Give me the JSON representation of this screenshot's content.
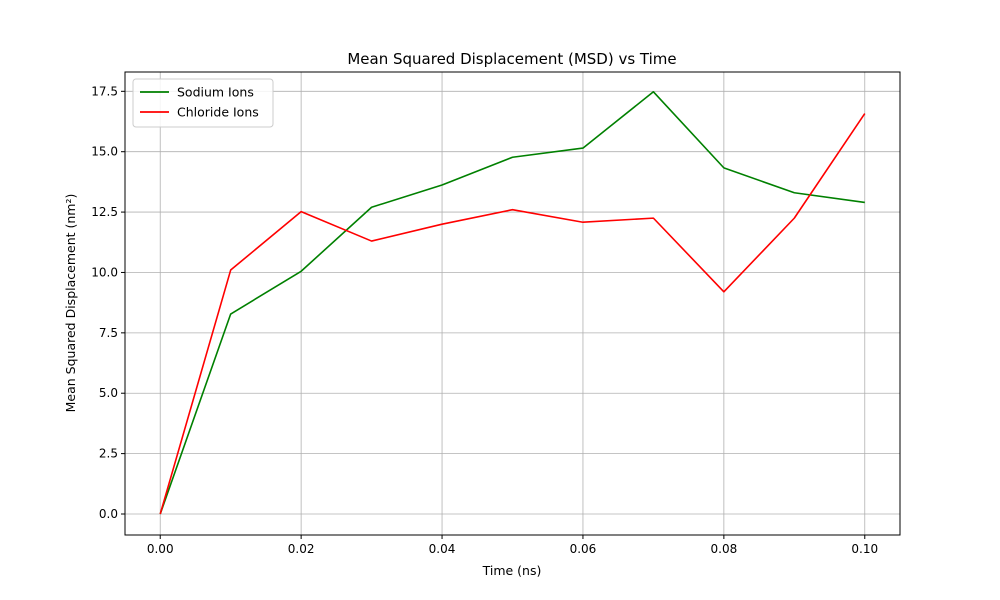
{
  "chart_data": {
    "type": "line",
    "title": "Mean Squared Displacement (MSD) vs Time",
    "xlabel": "Time (ns)",
    "ylabel": "Mean Squared Displacement (nm²)",
    "x": [
      0.0,
      0.01,
      0.02,
      0.03,
      0.04,
      0.05,
      0.06,
      0.07,
      0.08,
      0.09,
      0.1
    ],
    "xlim": [
      -0.005,
      0.105
    ],
    "ylim": [
      -0.87,
      18.3
    ],
    "xticks": [
      0.0,
      0.02,
      0.04,
      0.06,
      0.08,
      0.1
    ],
    "xtick_labels": [
      "0.00",
      "0.02",
      "0.04",
      "0.06",
      "0.08",
      "0.10"
    ],
    "yticks": [
      0.0,
      2.5,
      5.0,
      7.5,
      10.0,
      12.5,
      15.0,
      17.5
    ],
    "ytick_labels": [
      "0.0",
      "2.5",
      "5.0",
      "7.5",
      "10.0",
      "12.5",
      "15.0",
      "17.5"
    ],
    "grid": true,
    "legend_position": "top-left",
    "series": [
      {
        "name": "Sodium Ions",
        "color": "#008000",
        "values": [
          0.0,
          8.28,
          10.05,
          12.7,
          13.62,
          14.77,
          15.15,
          17.48,
          14.33,
          13.3,
          12.9
        ]
      },
      {
        "name": "Chloride Ions",
        "color": "#ff0000",
        "values": [
          0.0,
          10.1,
          12.52,
          11.3,
          12.0,
          12.6,
          12.08,
          12.25,
          9.2,
          12.25,
          16.58
        ]
      }
    ]
  }
}
